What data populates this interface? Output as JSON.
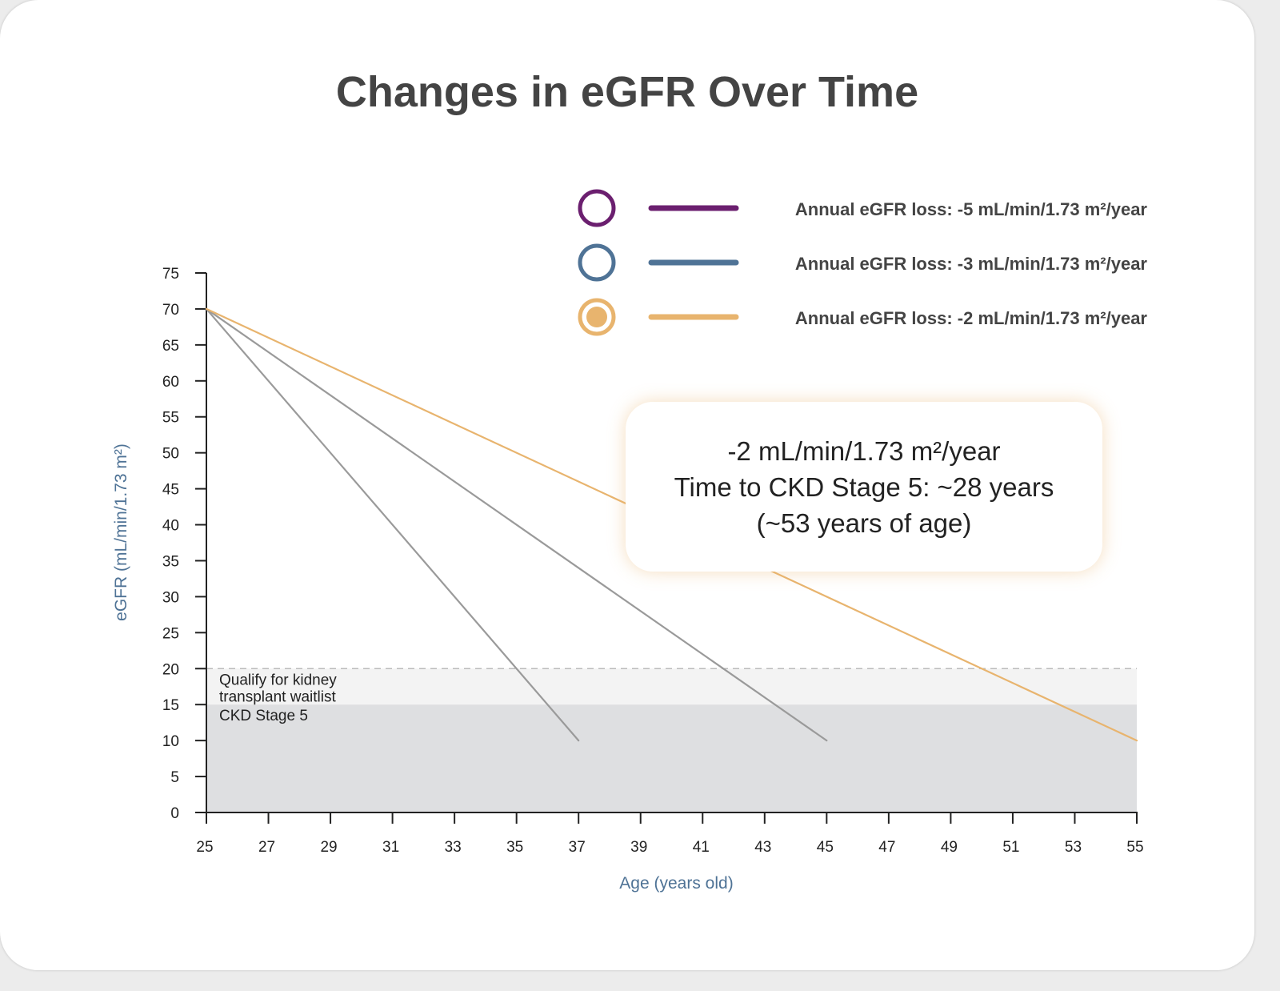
{
  "chart_data": {
    "type": "line",
    "title": "Changes in eGFR Over Time",
    "xlabel": "Age (years old)",
    "ylabel": "eGFR (mL/min/1.73 m²)",
    "xlim": [
      25,
      55
    ],
    "ylim": [
      0,
      75
    ],
    "x_ticks": [
      25,
      27,
      29,
      31,
      33,
      35,
      37,
      39,
      41,
      43,
      45,
      47,
      49,
      51,
      53,
      55
    ],
    "y_ticks": [
      0,
      5,
      10,
      15,
      20,
      25,
      30,
      35,
      40,
      45,
      50,
      55,
      60,
      65,
      70,
      75
    ],
    "grid": false,
    "legend_position": "top-right",
    "series": [
      {
        "name": "Annual eGFR loss: -5 mL/min/1.73 m²/year",
        "legend_color": "#6b1f6f",
        "line_color": "#9a9a9a",
        "marker": "ring",
        "x": [
          25,
          37
        ],
        "y": [
          70,
          10
        ]
      },
      {
        "name": "Annual eGFR loss: -3 mL/min/1.73 m²/year",
        "legend_color": "#4f7396",
        "line_color": "#9a9a9a",
        "marker": "ring",
        "x": [
          25,
          45
        ],
        "y": [
          70,
          10
        ]
      },
      {
        "name": "Annual eGFR loss: -2 mL/min/1.73 m²/year",
        "legend_color": "#e8b46e",
        "line_color": "#e8b46e",
        "marker": "filled-ring",
        "x": [
          25,
          55
        ],
        "y": [
          70,
          10
        ]
      }
    ],
    "regions": [
      {
        "label": [
          "Qualify for kidney",
          "transplant waitlist"
        ],
        "y_from": 15,
        "y_to": 20,
        "color": "#f3f3f3",
        "dashed_top": true
      },
      {
        "label": [
          "CKD Stage 5"
        ],
        "y_from": 0,
        "y_to": 15,
        "color": "#dedfe1",
        "dashed_top": false
      }
    ],
    "annotation": {
      "lines": [
        "-2 mL/min/1.73 m²/year",
        "Time to CKD Stage 5: ~28 years",
        "(~53 years of age)"
      ]
    }
  },
  "colors": {
    "axis": "#222222",
    "title_text": "#444444",
    "axis_title": "#4f7396",
    "dashed_threshold": "#bbbbbb"
  }
}
